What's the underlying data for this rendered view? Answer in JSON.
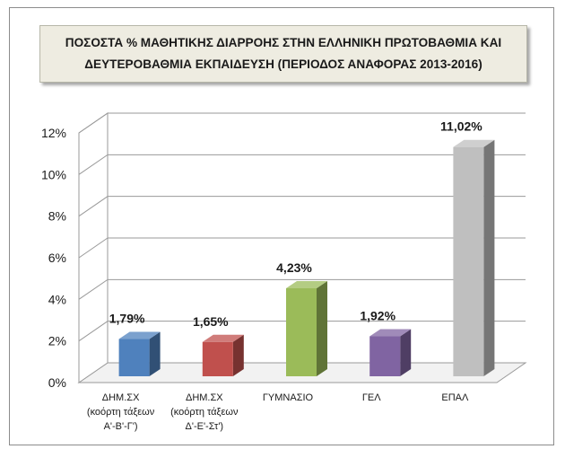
{
  "chart_data": {
    "type": "bar",
    "title": [
      "ΠΟΣΟΣΤΑ % ΜΑΘΗΤΙΚΗΣ ΔΙΑΡΡΟΗΣ ΣΤΗΝ ΕΛΛΗΝΙΚΗ ΠΡΩΤΟΒΑΘΜΙΑ ΚΑΙ",
      "ΔΕΥΤΕΡΟΒΑΘΜΙΑ ΕΚΠΑΙΔΕΥΣΗ (ΠΕΡΙΟΔΟΣ ΑΝΑΦΟΡΑΣ 2013-2016)"
    ],
    "categories": [
      [
        "ΔΗΜ.ΣΧ",
        "(κοόρτη τάξεων",
        "Α'-Β'-Γ')"
      ],
      [
        "ΔΗΜ.ΣΧ",
        "(κοόρτη τάξεων",
        "Δ'-Ε'-Στ')"
      ],
      [
        "ΓΥΜΝΑΣΙΟ"
      ],
      [
        "ΓΕΛ"
      ],
      [
        "ΕΠΑΛ"
      ]
    ],
    "values": [
      1.79,
      1.65,
      4.23,
      1.92,
      11.02
    ],
    "data_labels": [
      "1,79%",
      "1,65%",
      "4,23%",
      "1,92%",
      "11,02%"
    ],
    "colors": [
      "#4f81bd",
      "#c0504d",
      "#9bbb59",
      "#8064a2",
      "#bfbfbf"
    ],
    "yticks": [
      "0%",
      "2%",
      "4%",
      "6%",
      "8%",
      "10%",
      "12%"
    ],
    "ylim": [
      0,
      12
    ],
    "grid": true,
    "three_d": true
  }
}
